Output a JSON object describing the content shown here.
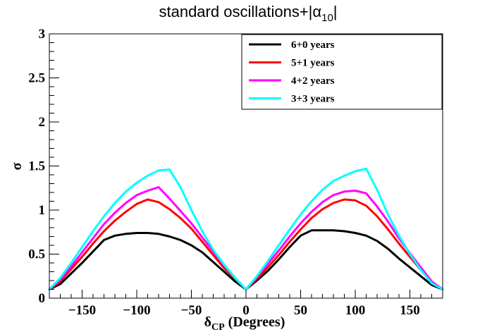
{
  "chart_data": {
    "type": "line",
    "title": "standard oscillations+|α",
    "title_subscript": "10",
    "title_suffix": "|",
    "xlabel_symbol": "δ",
    "xlabel_subscript": "CP",
    "xlabel_suffix": " (Degrees)",
    "ylabel": "σ",
    "xlim": [
      -180,
      180
    ],
    "ylim": [
      0,
      3
    ],
    "x_ticks": [
      -150,
      -100,
      -50,
      0,
      50,
      100,
      150
    ],
    "x_tick_labels": [
      "−150",
      "−100",
      "−50",
      "0",
      "50",
      "100",
      "150"
    ],
    "y_ticks": [
      0,
      0.5,
      1,
      1.5,
      2,
      2.5,
      3
    ],
    "y_tick_labels": [
      "0",
      "0.5",
      "1",
      "1.5",
      "2",
      "2.5",
      "3"
    ],
    "grid": false,
    "legend_position": "top-right",
    "series": [
      {
        "name": "6+0 years",
        "color": "#000000",
        "x": [
          -180,
          -170,
          -160,
          -150,
          -140,
          -130,
          -120,
          -110,
          -100,
          -90,
          -80,
          -70,
          -60,
          -50,
          -40,
          -30,
          -20,
          -10,
          0,
          10,
          20,
          30,
          40,
          50,
          60,
          70,
          80,
          90,
          100,
          110,
          120,
          130,
          140,
          150,
          160,
          170,
          180
        ],
        "values": [
          0.1,
          0.16,
          0.28,
          0.4,
          0.53,
          0.66,
          0.71,
          0.73,
          0.74,
          0.74,
          0.73,
          0.7,
          0.66,
          0.6,
          0.52,
          0.41,
          0.3,
          0.19,
          0.1,
          0.2,
          0.31,
          0.44,
          0.58,
          0.71,
          0.77,
          0.77,
          0.77,
          0.76,
          0.74,
          0.71,
          0.65,
          0.56,
          0.45,
          0.35,
          0.25,
          0.15,
          0.1
        ]
      },
      {
        "name": "5+1 years",
        "color": "#ff0000",
        "x": [
          -180,
          -170,
          -160,
          -150,
          -140,
          -130,
          -120,
          -110,
          -100,
          -90,
          -80,
          -70,
          -60,
          -50,
          -40,
          -30,
          -20,
          -10,
          0,
          10,
          20,
          30,
          40,
          50,
          60,
          70,
          80,
          90,
          100,
          110,
          120,
          130,
          140,
          150,
          160,
          170,
          180
        ],
        "values": [
          0.1,
          0.19,
          0.33,
          0.47,
          0.62,
          0.76,
          0.88,
          0.98,
          1.07,
          1.12,
          1.09,
          1.01,
          0.91,
          0.79,
          0.64,
          0.49,
          0.34,
          0.22,
          0.1,
          0.22,
          0.35,
          0.49,
          0.64,
          0.78,
          0.91,
          1.01,
          1.08,
          1.12,
          1.11,
          1.05,
          0.93,
          0.78,
          0.62,
          0.47,
          0.32,
          0.18,
          0.1
        ]
      },
      {
        "name": "4+2 years",
        "color": "#ff00ff",
        "x": [
          -180,
          -170,
          -160,
          -150,
          -140,
          -130,
          -120,
          -110,
          -100,
          -90,
          -80,
          -70,
          -60,
          -50,
          -40,
          -30,
          -20,
          -10,
          0,
          10,
          20,
          30,
          40,
          50,
          60,
          70,
          80,
          90,
          100,
          110,
          120,
          130,
          140,
          150,
          160,
          170,
          180
        ],
        "values": [
          0.1,
          0.21,
          0.36,
          0.52,
          0.68,
          0.84,
          0.97,
          1.08,
          1.17,
          1.22,
          1.26,
          1.13,
          0.99,
          0.85,
          0.69,
          0.53,
          0.37,
          0.23,
          0.1,
          0.24,
          0.39,
          0.54,
          0.7,
          0.85,
          0.98,
          1.09,
          1.17,
          1.21,
          1.22,
          1.19,
          1.04,
          0.87,
          0.68,
          0.51,
          0.35,
          0.19,
          0.1
        ]
      },
      {
        "name": "3+3 years",
        "color": "#00ffff",
        "x": [
          -180,
          -170,
          -160,
          -150,
          -140,
          -130,
          -120,
          -110,
          -100,
          -90,
          -80,
          -70,
          -60,
          -50,
          -40,
          -30,
          -20,
          -10,
          0,
          10,
          20,
          30,
          40,
          50,
          60,
          70,
          80,
          90,
          100,
          110,
          120,
          130,
          140,
          150,
          160,
          170,
          180
        ],
        "values": [
          0.1,
          0.23,
          0.4,
          0.58,
          0.76,
          0.93,
          1.08,
          1.21,
          1.31,
          1.39,
          1.45,
          1.46,
          1.26,
          1.0,
          0.76,
          0.55,
          0.38,
          0.23,
          0.1,
          0.25,
          0.42,
          0.6,
          0.78,
          0.95,
          1.1,
          1.23,
          1.33,
          1.39,
          1.44,
          1.47,
          1.23,
          0.95,
          0.71,
          0.5,
          0.32,
          0.17,
          0.1
        ]
      }
    ]
  }
}
